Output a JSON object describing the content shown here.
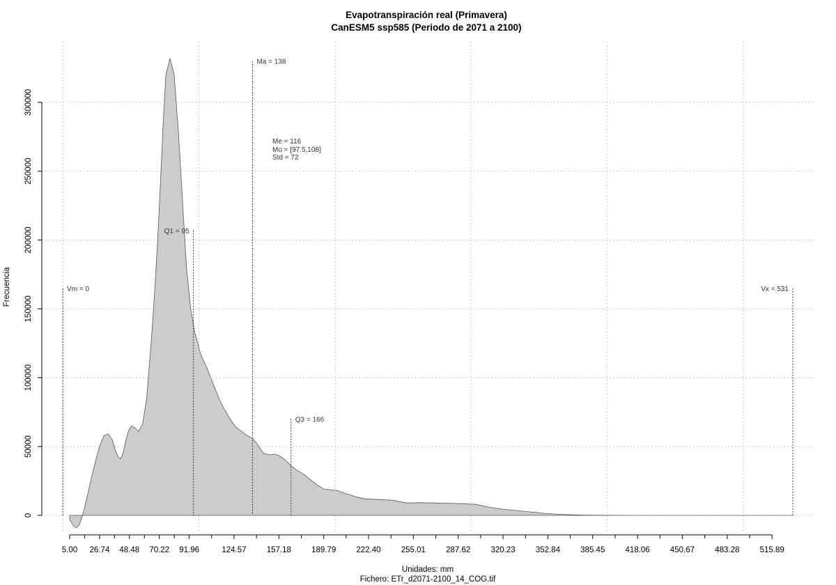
{
  "chart_data": {
    "type": "area",
    "title": "Evapotranspiración real (Primavera)",
    "subtitle": "CanESM5 ssp585 (Periodo de 2071 a 2100)",
    "xlabel": "Unidades: mm",
    "footer": "Fichero: ETr_d2071-2100_14_COG.tif",
    "ylabel": "Frecuencia",
    "xlim": [
      5.0,
      531
    ],
    "ylim": [
      0,
      330000
    ],
    "grid": true,
    "fill_color": "#cccccc",
    "line_color": "#555555",
    "x_ticks": [
      5.0,
      26.74,
      48.48,
      70.22,
      91.96,
      124.57,
      157.18,
      189.79,
      222.4,
      255.01,
      287.62,
      320.23,
      352.84,
      385.45,
      418.06,
      450.67,
      483.28,
      515.89
    ],
    "x_tick_labels": [
      "5.00",
      "26.74",
      "48.48",
      "70.22",
      "91.96",
      "124.57",
      "157.18",
      "189.79",
      "222.40",
      "255.01",
      "287.62",
      "320.23",
      "352.84",
      "385.45",
      "418.06",
      "450.67",
      "483.28",
      "515.89"
    ],
    "x_minor_ticks": [
      15.87,
      37.61,
      59.35,
      81.09,
      108.27,
      140.88,
      173.49,
      206.1,
      238.71,
      271.32,
      303.93,
      336.54,
      369.15,
      401.76,
      434.37,
      466.98,
      499.59
    ],
    "y_ticks": [
      0,
      50000,
      100000,
      150000,
      200000,
      250000,
      300000
    ],
    "y_tick_labels": [
      "0",
      "50000",
      "100000",
      "150000",
      "200000",
      "250000",
      "300000"
    ],
    "x_grid": [
      0,
      99,
      198,
      297,
      396,
      495
    ],
    "series": [
      {
        "x": [
          5,
          8,
          10,
          12,
          15,
          18,
          21,
          24,
          27,
          30,
          33,
          36,
          38,
          40,
          42,
          44,
          46,
          48,
          50,
          52,
          55,
          58,
          61,
          63,
          65,
          67,
          69,
          71,
          73,
          75,
          78,
          81,
          84,
          87,
          90,
          93,
          96,
          98,
          100,
          102,
          104,
          106,
          108,
          110,
          112,
          114,
          117,
          120,
          123,
          126,
          130,
          134,
          138,
          142,
          146,
          150,
          154,
          158,
          162,
          166,
          170,
          175,
          180,
          185,
          190,
          195,
          200,
          205,
          210,
          215,
          220,
          230,
          240,
          250,
          260,
          270,
          280,
          290,
          300,
          310,
          320,
          330,
          340,
          350,
          360,
          370,
          380,
          390,
          400,
          410,
          420,
          430,
          440,
          450,
          460,
          470,
          480,
          490,
          500,
          510,
          520,
          531
        ],
        "y": [
          -3000,
          -8000,
          -9000,
          -7000,
          2000,
          15000,
          28000,
          40000,
          51000,
          58000,
          59000,
          55000,
          48000,
          43000,
          41000,
          46000,
          55000,
          62000,
          65000,
          64000,
          61000,
          66000,
          85000,
          110000,
          135000,
          165000,
          200000,
          240000,
          285000,
          320000,
          332000,
          320000,
          280000,
          230000,
          180000,
          150000,
          133000,
          126000,
          118000,
          113000,
          109000,
          104000,
          99000,
          94000,
          89000,
          84000,
          78000,
          73000,
          68000,
          64000,
          61000,
          58000,
          56000,
          51000,
          45000,
          44000,
          44500,
          43000,
          40000,
          36000,
          33000,
          30000,
          26000,
          22000,
          19000,
          18500,
          18000,
          16000,
          14500,
          13000,
          12000,
          11500,
          11000,
          9000,
          9200,
          9000,
          8800,
          8500,
          8000,
          6000,
          4500,
          3500,
          2500,
          1500,
          800,
          400,
          200,
          100,
          50,
          20,
          10,
          5,
          0,
          0,
          0,
          0,
          0,
          0,
          0,
          0,
          0,
          0
        ]
      }
    ],
    "markers": [
      {
        "x": 0,
        "y_top": 165000,
        "label": "Vm = 0",
        "label_side": "right"
      },
      {
        "x": 95,
        "y_top": 207000,
        "label": "Q1 = 95",
        "label_side": "left"
      },
      {
        "x": 138,
        "y_top": 330000,
        "label": "Ma = 138",
        "label_side": "right"
      },
      {
        "x": 166,
        "y_top": 70000,
        "label": "Q3 = 166",
        "label_side": "right"
      },
      {
        "x": 531,
        "y_top": 165000,
        "label": "Vx = 531",
        "label_side": "left"
      }
    ],
    "stats_box": [
      "Me = 116",
      "Mo = [97.5,108]",
      "Std = 72"
    ]
  }
}
